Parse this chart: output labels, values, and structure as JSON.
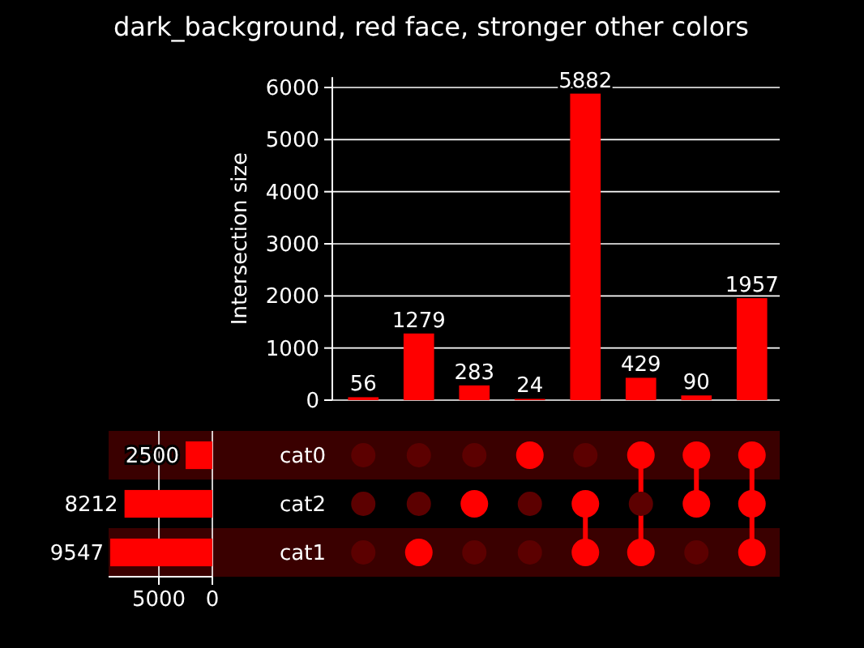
{
  "chart_data": [
    {
      "type": "bar",
      "title": "dark_background, red face, stronger other colors",
      "ylabel": "Intersection size",
      "categories": [
        null,
        null,
        null,
        null,
        null,
        null,
        null,
        null
      ],
      "values": [
        56,
        1279,
        283,
        24,
        5882,
        429,
        90,
        1957
      ],
      "color": "#ff0000",
      "ylim": [
        0,
        6200
      ],
      "yticks": [
        0,
        1000,
        2000,
        3000,
        4000,
        5000,
        6000
      ],
      "grid": "y",
      "data_labels": true
    },
    {
      "type": "bar",
      "orientation": "horizontal",
      "categories": [
        "cat0",
        "cat2",
        "cat1"
      ],
      "values": [
        2500,
        8212,
        9547
      ],
      "color": "#ff0000",
      "xlim": [
        9700,
        0
      ],
      "xticks": [
        5000,
        0
      ],
      "grid": "x",
      "bands": [
        {
          "axis": "y",
          "from": "cat0",
          "to": "cat0",
          "color": "#3a0000"
        },
        {
          "axis": "y",
          "from": "cat1",
          "to": "cat1",
          "color": "#3a0000"
        }
      ],
      "data_labels": true
    }
  ]
}
